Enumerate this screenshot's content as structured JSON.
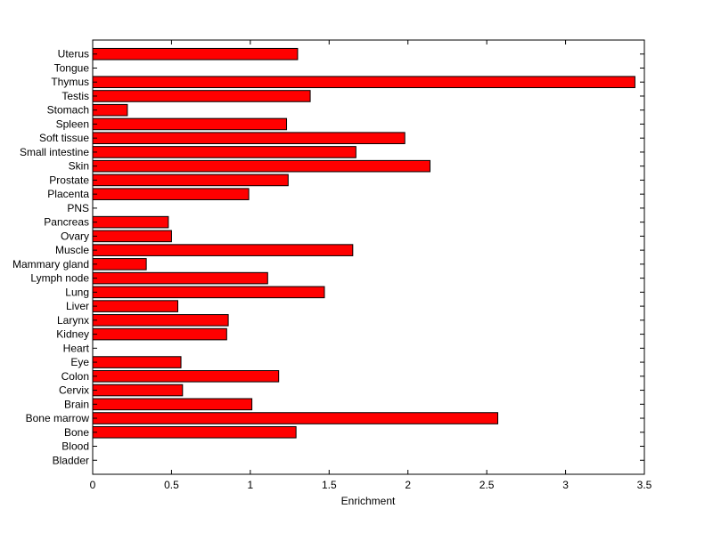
{
  "chart_data": {
    "type": "bar",
    "orientation": "horizontal",
    "title": "",
    "xlabel": "Enrichment",
    "ylabel": "",
    "xlim": [
      0,
      3.5
    ],
    "xticks": [
      0,
      0.5,
      1,
      1.5,
      2,
      2.5,
      3,
      3.5
    ],
    "xtick_labels": [
      "0",
      "0.5",
      "1",
      "1.5",
      "2",
      "2.5",
      "3",
      "3.5"
    ],
    "grid": false,
    "legend": "none",
    "bar_color": "#ff0000",
    "bar_edge_color": "#000000",
    "categories": [
      "Bladder",
      "Blood",
      "Bone",
      "Bone marrow",
      "Brain",
      "Cervix",
      "Colon",
      "Eye",
      "Heart",
      "Kidney",
      "Larynx",
      "Liver",
      "Lung",
      "Lymph node",
      "Mammary gland",
      "Muscle",
      "Ovary",
      "Pancreas",
      "PNS",
      "Placenta",
      "Prostate",
      "Skin",
      "Small intestine",
      "Soft tissue",
      "Spleen",
      "Stomach",
      "Testis",
      "Thymus",
      "Tongue",
      "Uterus"
    ],
    "values": [
      0,
      0,
      1.29,
      2.57,
      1.01,
      0.57,
      1.18,
      0.56,
      0,
      0.85,
      0.86,
      0.54,
      1.47,
      1.11,
      0.34,
      1.65,
      0.5,
      0.48,
      0,
      0.99,
      1.24,
      2.14,
      1.67,
      1.98,
      1.23,
      0.22,
      1.38,
      3.44,
      0,
      1.3
    ]
  }
}
